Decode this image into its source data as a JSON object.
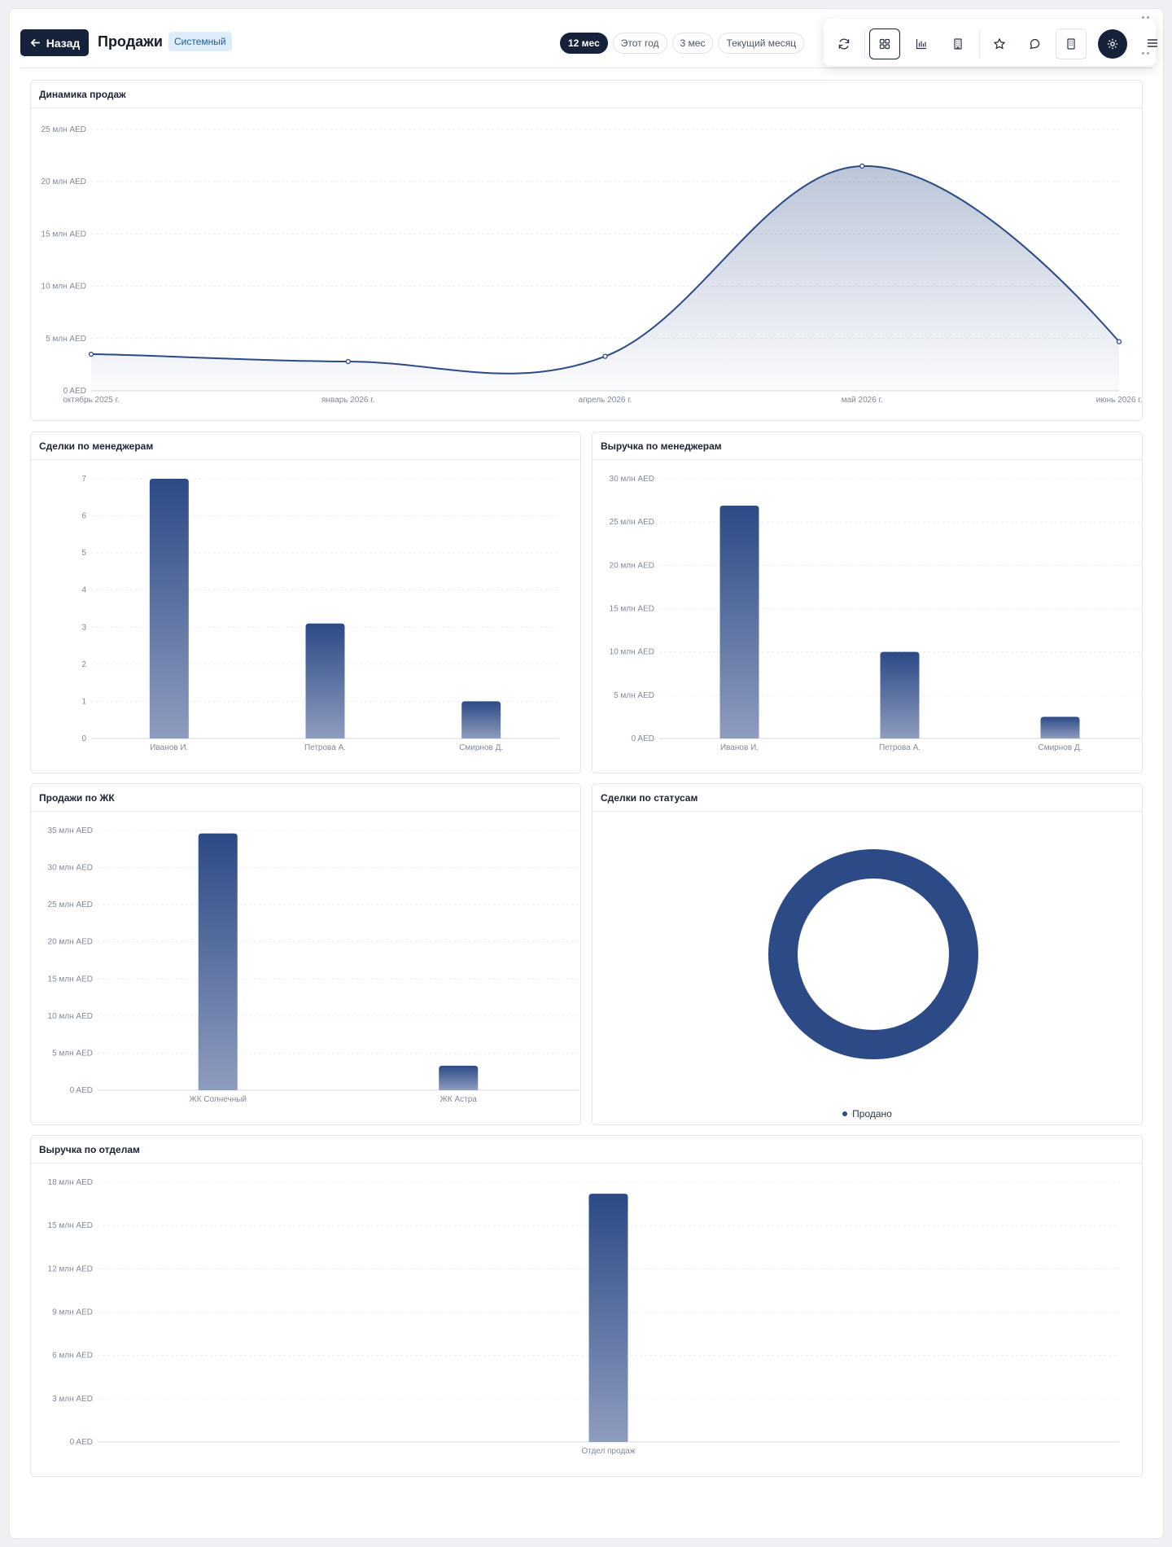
{
  "header": {
    "back_label": "Назад",
    "title": "Продажи",
    "badge": "Системный",
    "periods": [
      "12 мес",
      "Этот год",
      "3 мес",
      "Текущий месяц"
    ],
    "active_period": "12 мес"
  },
  "toolbar": {
    "icons": [
      "refresh-icon",
      "grid-view-icon",
      "bar-chart-icon",
      "building-icon",
      "star-icon",
      "chat-icon",
      "document-icon",
      "settings-icon",
      "menu-icon"
    ]
  },
  "colors": {
    "accent": "#16213a",
    "series": "#2c4a86",
    "series_light": "#8e9cbe"
  },
  "chart_data": [
    {
      "id": "sales_dynamics",
      "type": "area",
      "title": "Динамика продаж",
      "x": [
        "октябрь 2025 г.",
        "январь 2026 г.",
        "апрель 2026 г.",
        "май 2026 г.",
        "июнь 2026 г."
      ],
      "values": [
        3500000,
        2800000,
        3300000,
        21500000,
        4700000
      ],
      "ylim": [
        0,
        25000000
      ],
      "yticks": [
        "0 AED",
        "5 млн AED",
        "10 млн AED",
        "15 млн AED",
        "20 млн AED",
        "25 млн AED"
      ],
      "grid": true
    },
    {
      "id": "deals_by_manager",
      "type": "bar",
      "title": "Сделки по менеджерам",
      "categories": [
        "Иванов И.",
        "Петрова А.",
        "Смирнов Д."
      ],
      "values": [
        7,
        3.1,
        1
      ],
      "ylim": [
        0,
        7
      ],
      "yticks": [
        "0",
        "1",
        "2",
        "3",
        "4",
        "5",
        "6",
        "7"
      ],
      "grid": true
    },
    {
      "id": "revenue_by_manager",
      "type": "bar",
      "title": "Выручка по менеджерам",
      "categories": [
        "Иванов И.",
        "Петрова А.",
        "Смирнов Д."
      ],
      "values": [
        26900000,
        10000000,
        2500000
      ],
      "ylim": [
        0,
        30000000
      ],
      "yticks": [
        "0 AED",
        "5 млн AED",
        "10 млн AED",
        "15 млн AED",
        "20 млн AED",
        "25 млн AED",
        "30 млн AED"
      ],
      "grid": true
    },
    {
      "id": "sales_by_complex",
      "type": "bar",
      "title": "Продажи по ЖК",
      "categories": [
        "ЖК Солнечный",
        "ЖК Астра"
      ],
      "values": [
        34600000,
        3300000
      ],
      "ylim": [
        0,
        35000000
      ],
      "yticks": [
        "0 AED",
        "5 млн AED",
        "10 млн AED",
        "15 млн AED",
        "20 млн AED",
        "25 млн AED",
        "30 млн AED",
        "35 млн AED"
      ],
      "grid": true
    },
    {
      "id": "deals_by_status",
      "type": "pie",
      "title": "Сделки по статусам",
      "categories": [
        "Продано"
      ],
      "values": [
        100
      ],
      "legend": "bottom"
    },
    {
      "id": "revenue_by_department",
      "type": "bar",
      "title": "Выручка по отделам",
      "categories": [
        "Отдел продаж"
      ],
      "values": [
        17200000
      ],
      "ylim": [
        0,
        18000000
      ],
      "yticks": [
        "0 AED",
        "3 млн AED",
        "6 млн AED",
        "9 млн AED",
        "12 млн AED",
        "15 млн AED",
        "18 млн AED"
      ],
      "grid": true
    }
  ]
}
